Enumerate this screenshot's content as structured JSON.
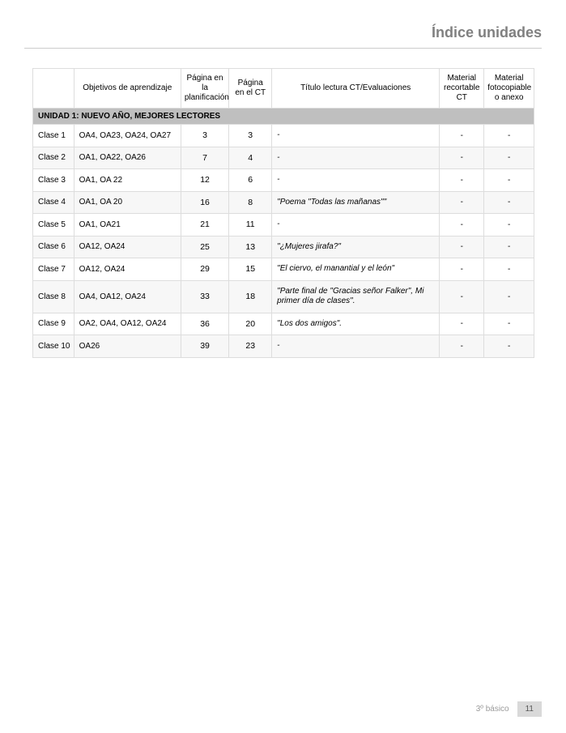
{
  "page_title": "Índice unidades",
  "headers": {
    "clase": "",
    "objetivos": "Objetivos de aprendizaje",
    "pag_plan": "Página en la planificación",
    "pag_ct": "Página en el CT",
    "titulo": "Título lectura CT/Evaluaciones",
    "mat_rec": "Material recortable CT",
    "mat_fot": "Material fotocopiable o anexo"
  },
  "unit_header": "UNIDAD 1: NUEVO AÑO, MEJORES LECTORES",
  "rows": [
    {
      "clase": "Clase 1",
      "obj": "OA4, OA23, OA24, OA27",
      "pag_plan": "3",
      "pag_ct": "3",
      "titulo": "-",
      "mat_rec": "-",
      "mat_fot": "-"
    },
    {
      "clase": "Clase 2",
      "obj": "OA1, OA22, OA26",
      "pag_plan": "7",
      "pag_ct": "4",
      "titulo": "-",
      "mat_rec": "-",
      "mat_fot": "-"
    },
    {
      "clase": "Clase 3",
      "obj": "OA1, OA 22",
      "pag_plan": "12",
      "pag_ct": "6",
      "titulo": "-",
      "mat_rec": "-",
      "mat_fot": "-"
    },
    {
      "clase": "Clase 4",
      "obj": "OA1, OA 20",
      "pag_plan": "16",
      "pag_ct": "8",
      "titulo": "\"Poema \"Todas las mañanas\"\"",
      "mat_rec": "-",
      "mat_fot": "-"
    },
    {
      "clase": "Clase 5",
      "obj": "OA1, OA21",
      "pag_plan": "21",
      "pag_ct": "11",
      "titulo": "-",
      "mat_rec": "-",
      "mat_fot": "-"
    },
    {
      "clase": "Clase 6",
      "obj": "OA12, OA24",
      "pag_plan": "25",
      "pag_ct": "13",
      "titulo": "\"¿Mujeres jirafa?\"",
      "mat_rec": "-",
      "mat_fot": "-"
    },
    {
      "clase": "Clase 7",
      "obj": "OA12, OA24",
      "pag_plan": "29",
      "pag_ct": "15",
      "titulo": "\"El ciervo, el manantial y el león\"",
      "mat_rec": "-",
      "mat_fot": "-"
    },
    {
      "clase": "Clase 8",
      "obj": "OA4, OA12, OA24",
      "pag_plan": "33",
      "pag_ct": "18",
      "titulo": "\"Parte final de \"Gracias señor Falker\", Mi primer día de clases\".",
      "mat_rec": "-",
      "mat_fot": "-"
    },
    {
      "clase": "Clase 9",
      "obj": "OA2, OA4, OA12, OA24",
      "pag_plan": "36",
      "pag_ct": "20",
      "titulo": "\"Los dos amigos\".",
      "mat_rec": "-",
      "mat_fot": "-"
    },
    {
      "clase": "Clase 10",
      "obj": "OA26",
      "pag_plan": "39",
      "pag_ct": "23",
      "titulo": "-",
      "mat_rec": "-",
      "mat_fot": "-"
    }
  ],
  "footer": {
    "grade": "3º básico",
    "page": "11"
  },
  "colors": {
    "title_gray": "#808080",
    "border": "#dddddd",
    "unit_bg": "#bfbfbf",
    "row_alt": "#f7f7f7",
    "footer_gray": "#9a9a9a",
    "footer_box": "#d9d9d9"
  }
}
